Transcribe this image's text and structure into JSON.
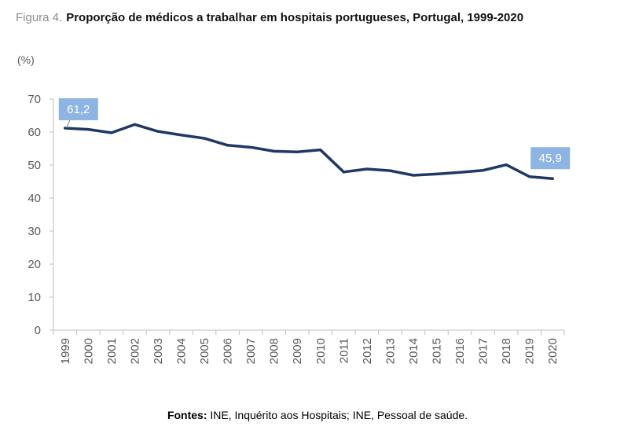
{
  "figure": {
    "label": "Figura 4.",
    "title": "Proporção de médicos a trabalhar em hospitais portugueses, Portugal, 1999-2020"
  },
  "source": {
    "prefix": "Fontes:",
    "text": "INE, Inquérito aos Hospitais; INE, Pessoal de saúde."
  },
  "chart_data": {
    "type": "line",
    "title": "Proporção de médicos a trabalhar em hospitais portugueses, Portugal, 1999-2020",
    "ylabel": "(%)",
    "xlabel": "",
    "ylim": [
      0,
      70
    ],
    "yticks": [
      0,
      10,
      20,
      30,
      40,
      50,
      60,
      70
    ],
    "grid": false,
    "legend": "none",
    "categories": [
      "1999",
      "2000",
      "2001",
      "2002",
      "2003",
      "2004",
      "2005",
      "2006",
      "2007",
      "2008",
      "2009",
      "2010",
      "2011",
      "2012",
      "2013",
      "2014",
      "2015",
      "2016",
      "2017",
      "2018",
      "2019",
      "2020"
    ],
    "series": [
      {
        "color": "#1f3864",
        "values": [
          61.2,
          60.8,
          59.8,
          62.3,
          60.2,
          59.1,
          58.1,
          56.0,
          55.4,
          54.2,
          54.0,
          54.6,
          47.9,
          48.8,
          48.3,
          46.9,
          47.3,
          47.8,
          48.4,
          50.1,
          46.5,
          45.9
        ]
      }
    ],
    "data_labels": [
      {
        "category": "1999",
        "text": "61,2"
      },
      {
        "category": "2020",
        "text": "45,9"
      }
    ],
    "colors": {
      "line": "#1f3864",
      "label_box": "#8db4e2",
      "axis": "#bfbfbf",
      "tick_text": "#595959"
    }
  }
}
